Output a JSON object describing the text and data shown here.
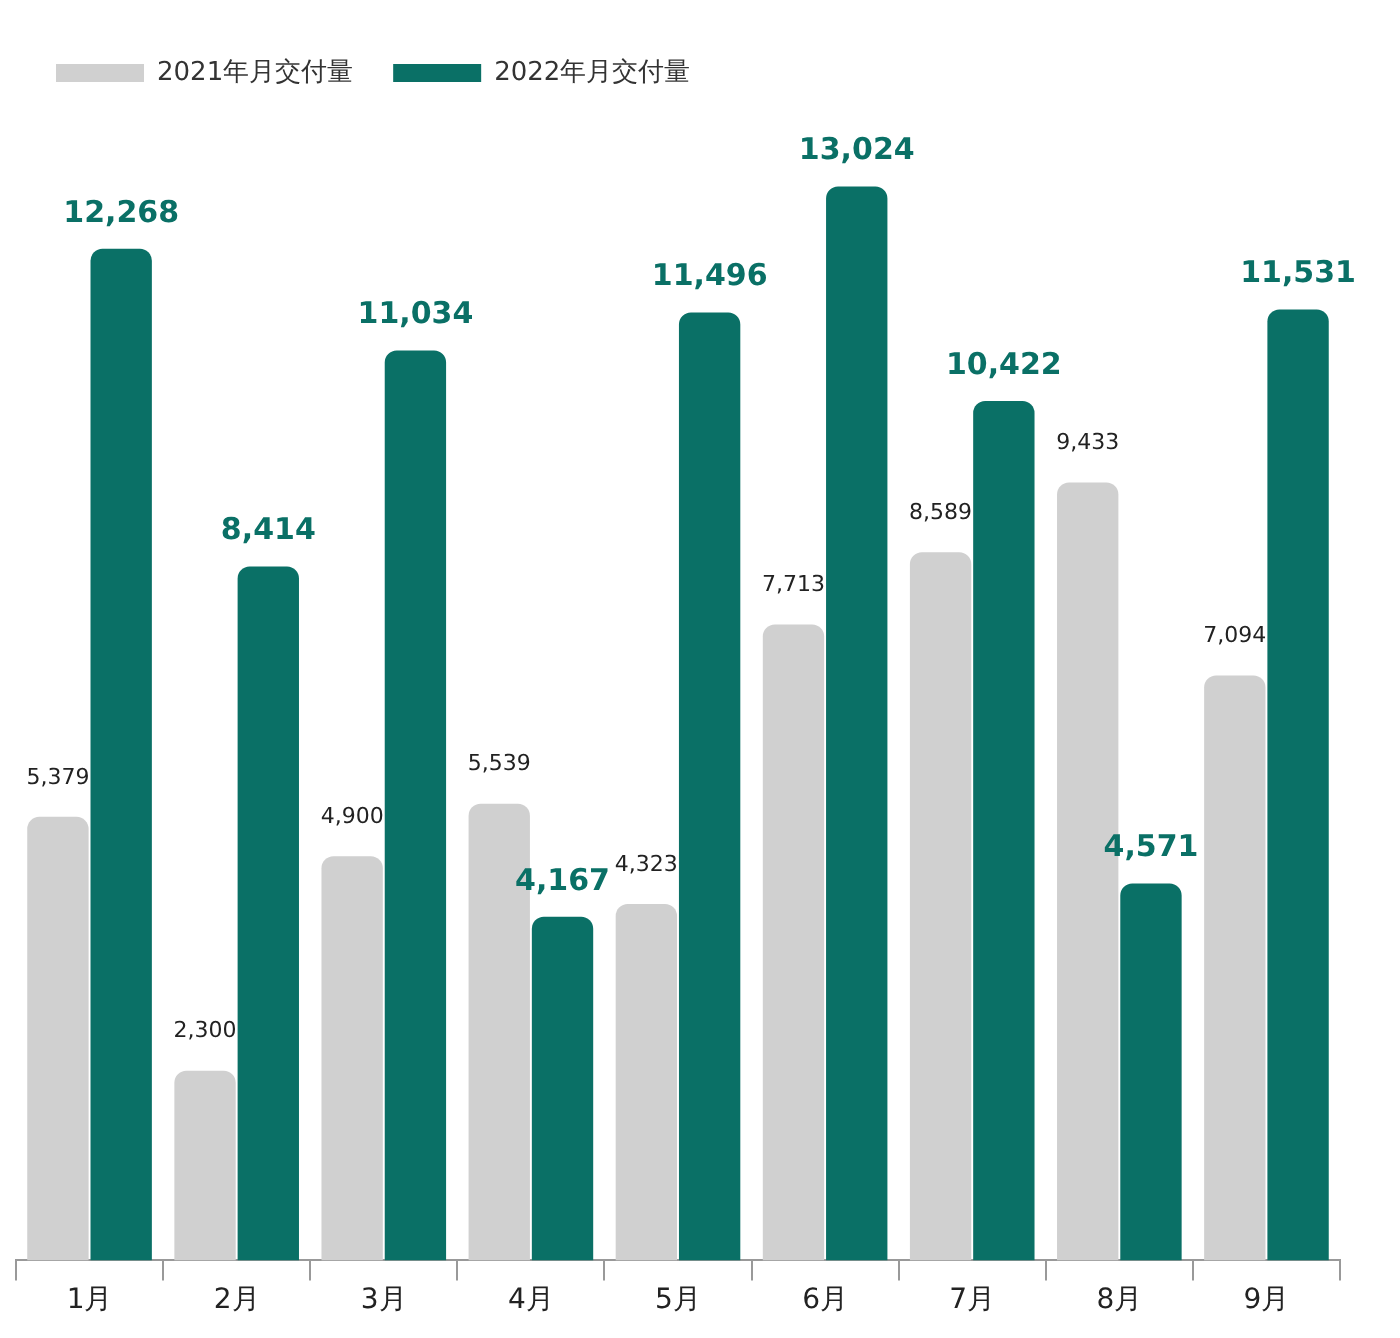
{
  "chart_data": {
    "type": "bar",
    "categories": [
      "1月",
      "2月",
      "3月",
      "4月",
      "5月",
      "6月",
      "7月",
      "8月",
      "9月"
    ],
    "series": [
      {
        "name": "2021年月交付量",
        "color": "#d0d0d0",
        "values": [
          5379,
          2300,
          4900,
          5539,
          4323,
          7713,
          8589,
          9433,
          7094
        ],
        "value_labels": [
          "5,379",
          "2,300",
          "4,900",
          "5,539",
          "4,323",
          "7,713",
          "8,589",
          "9,433",
          "7,094"
        ]
      },
      {
        "name": "2022年月交付量",
        "color": "#0a7066",
        "values": [
          12268,
          8414,
          11034,
          4167,
          11496,
          13024,
          10422,
          4571,
          11531
        ],
        "value_labels": [
          "12,268",
          "8,414",
          "11,034",
          "4,167",
          "11,496",
          "13,024",
          "10,422",
          "4,571",
          "11,531"
        ]
      }
    ],
    "legend": "top left",
    "grid": false
  }
}
